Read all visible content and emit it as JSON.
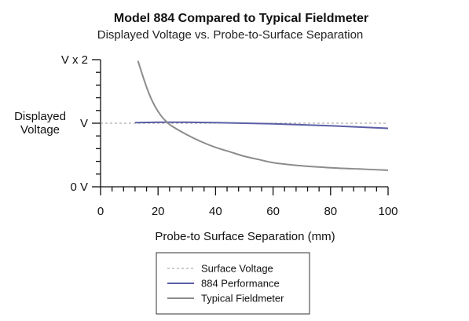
{
  "chart_data": {
    "type": "line",
    "title": "Model 884 Compared to Typical Fieldmeter",
    "subtitle": "Displayed Voltage vs. Probe-to-Surface Separation",
    "xlabel": "Probe-to Surface Separation (mm)",
    "ylabel": [
      "Displayed",
      "Voltage"
    ],
    "xlim": [
      0,
      100
    ],
    "x_ticks": [
      0,
      20,
      40,
      60,
      80,
      100
    ],
    "x_minor_step": 4,
    "ylim": [
      0,
      2
    ],
    "y_ticks": [
      {
        "value": 0,
        "label": "0 V"
      },
      {
        "value": 1,
        "label": "V"
      },
      {
        "value": 2,
        "label": "V x 2"
      }
    ],
    "y_minor_step": 0.2,
    "grid": false,
    "legend_position": "bottom-center",
    "series": [
      {
        "name": "Surface Voltage",
        "style": "dashed",
        "color": "#999999",
        "x": [
          0,
          100
        ],
        "y": [
          1,
          1
        ]
      },
      {
        "name": "884 Performance",
        "style": "solid",
        "color": "#5B5EA6",
        "x": [
          12,
          20,
          30,
          40,
          50,
          60,
          70,
          80,
          90,
          100
        ],
        "y": [
          1.01,
          1.015,
          1.015,
          1.01,
          1.0,
          0.99,
          0.975,
          0.96,
          0.94,
          0.92
        ]
      },
      {
        "name": "Typical Fieldmeter",
        "style": "solid",
        "color": "#8C8C8C",
        "x": [
          13,
          15,
          17,
          19,
          21,
          23,
          25,
          30,
          35,
          40,
          45,
          50,
          55,
          60,
          70,
          80,
          90,
          100
        ],
        "y": [
          1.98,
          1.7,
          1.45,
          1.26,
          1.12,
          1.02,
          0.95,
          0.82,
          0.71,
          0.62,
          0.55,
          0.48,
          0.43,
          0.38,
          0.33,
          0.3,
          0.28,
          0.26
        ]
      }
    ]
  }
}
